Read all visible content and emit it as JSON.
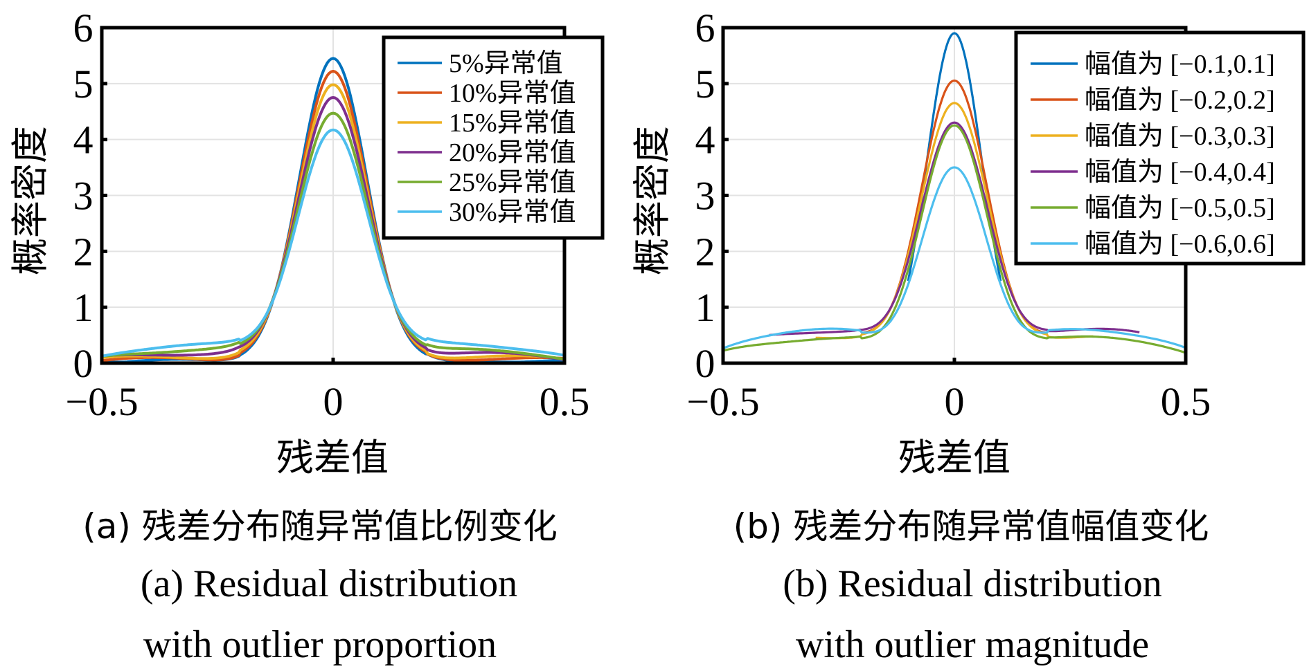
{
  "chart_data": [
    {
      "type": "line",
      "panel": "a",
      "title": "",
      "xlabel": "残差值",
      "ylabel": "概率密度",
      "xlim": [
        -0.5,
        0.5
      ],
      "ylim": [
        0,
        6
      ],
      "xticks": [
        "−0.5",
        "0",
        "0.5"
      ],
      "xtick_values": [
        -0.5,
        0,
        0.5
      ],
      "yticks": [
        "0",
        "1",
        "2",
        "3",
        "4",
        "5",
        "6"
      ],
      "grid": true,
      "legend_position": "top-right",
      "series": [
        {
          "name": "5%异常值",
          "color": "#0072BD",
          "peak": 5.45,
          "sigma": 0.073,
          "tail_left": 0.03,
          "tail_right": 0.05,
          "xrange": [
            -0.5,
            0.5
          ]
        },
        {
          "name": "10%异常值",
          "color": "#D95319",
          "peak": 5.22,
          "sigma": 0.074,
          "tail_left": 0.07,
          "tail_right": 0.09,
          "xrange": [
            -0.5,
            0.5
          ]
        },
        {
          "name": "15%异常值",
          "color": "#EDB120",
          "peak": 4.98,
          "sigma": 0.075,
          "tail_left": 0.12,
          "tail_right": 0.11,
          "xrange": [
            -0.5,
            0.5
          ]
        },
        {
          "name": "20%异常值",
          "color": "#7E2F8E",
          "peak": 4.75,
          "sigma": 0.076,
          "tail_left": 0.19,
          "tail_right": 0.16,
          "xrange": [
            -0.5,
            0.5
          ]
        },
        {
          "name": "25%异常值",
          "color": "#77AC30",
          "peak": 4.47,
          "sigma": 0.077,
          "tail_left": 0.25,
          "tail_right": 0.22,
          "xrange": [
            -0.5,
            0.5
          ]
        },
        {
          "name": "30%异常值",
          "color": "#4DBEEE",
          "peak": 4.17,
          "sigma": 0.078,
          "tail_left": 0.32,
          "tail_right": 0.33,
          "xrange": [
            -0.5,
            0.5
          ]
        }
      ]
    },
    {
      "type": "line",
      "panel": "b",
      "title": "",
      "xlabel": "残差值",
      "ylabel": "概率密度",
      "xlim": [
        -0.5,
        0.5
      ],
      "ylim": [
        0,
        6
      ],
      "xticks": [
        "−0.5",
        "0",
        "0.5"
      ],
      "xtick_values": [
        -0.5,
        0,
        0.5
      ],
      "yticks": [
        "0",
        "1",
        "2",
        "3",
        "4",
        "5",
        "6"
      ],
      "grid": true,
      "legend_position": "top-right",
      "series": [
        {
          "name": "幅值为 [−0.1,0.1]",
          "color": "#0072BD",
          "peak": 5.9,
          "sigma": 0.06,
          "tail_left": 0.0,
          "tail_right": 0.0,
          "xrange": [
            -0.1,
            0.1
          ]
        },
        {
          "name": "幅值为 [−0.2,0.2]",
          "color": "#D95319",
          "peak": 5.05,
          "sigma": 0.072,
          "tail_left": 0.55,
          "tail_right": 0.55,
          "xrange": [
            -0.2,
            0.2
          ]
        },
        {
          "name": "幅值为 [−0.3,0.3]",
          "color": "#EDB120",
          "peak": 4.65,
          "sigma": 0.074,
          "tail_left": 0.5,
          "tail_right": 0.5,
          "xrange": [
            -0.3,
            0.3
          ]
        },
        {
          "name": "幅值为 [−0.4,0.4]",
          "color": "#7E2F8E",
          "peak": 4.3,
          "sigma": 0.075,
          "tail_left": 0.6,
          "tail_right": 0.6,
          "xrange": [
            -0.4,
            0.4
          ]
        },
        {
          "name": "幅值为 [−0.5,0.5]",
          "color": "#77AC30",
          "peak": 4.25,
          "sigma": 0.072,
          "tail_left": 0.45,
          "tail_right": 0.45,
          "xrange": [
            -0.5,
            0.5
          ]
        },
        {
          "name": "幅值为 [−0.6,0.6]",
          "color": "#4DBEEE",
          "peak": 3.5,
          "sigma": 0.072,
          "tail_left": 0.6,
          "tail_right": 0.6,
          "xrange": [
            -0.5,
            0.5
          ]
        }
      ]
    }
  ],
  "captions": {
    "a_cn": "(a) 残差分布随异常值比例变化",
    "b_cn": "(b) 残差分布随异常值幅值变化",
    "a_en_line1": "(a) Residual distribution",
    "a_en_line2": "with outlier proportion",
    "b_en_line1": "(b) Residual distribution",
    "b_en_line2": "with outlier magnitude"
  }
}
